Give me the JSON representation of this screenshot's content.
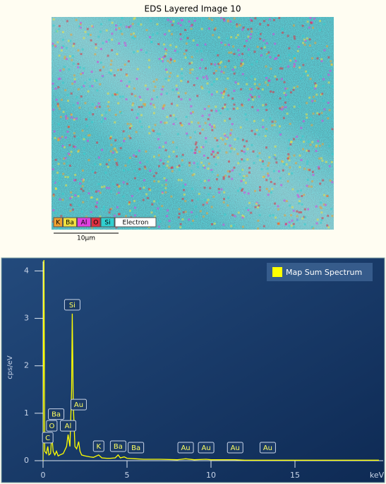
{
  "image": {
    "title": "EDS Layered Image 10",
    "legend": [
      {
        "label": "K",
        "color": "#f0a030"
      },
      {
        "label": "Ba",
        "color": "#f0e040"
      },
      {
        "label": "Al",
        "color": "#e040e0"
      },
      {
        "label": "O",
        "color": "#e03040"
      },
      {
        "label": "Si",
        "color": "#30d0d0"
      },
      {
        "label": "Electron",
        "color": "#ffffff"
      }
    ],
    "scale_bar": "10μm"
  },
  "chart_data": {
    "type": "line",
    "xlabel": "keV",
    "ylabel": "cps/eV",
    "xlim": [
      0,
      20
    ],
    "xticks": [
      0,
      5,
      10,
      15
    ],
    "ylim": [
      0,
      4.2
    ],
    "yticks": [
      0,
      1,
      2,
      3,
      4
    ],
    "x": [
      0,
      0.05,
      0.1,
      0.2,
      0.28,
      0.35,
      0.45,
      0.52,
      0.6,
      0.7,
      0.8,
      0.9,
      1.0,
      1.2,
      1.4,
      1.49,
      1.6,
      1.7,
      1.74,
      1.8,
      1.9,
      2.0,
      2.12,
      2.2,
      2.3,
      2.5,
      2.8,
      3.0,
      3.31,
      3.5,
      3.8,
      4.0,
      4.3,
      4.47,
      4.6,
      4.83,
      5.0,
      5.5,
      6,
      7,
      8,
      8.49,
      9,
      9.71,
      10,
      11,
      11.44,
      12,
      13,
      13.38,
      14,
      16,
      18,
      20
    ],
    "series": [
      {
        "name": "Map Sum Spectrum",
        "color": "#ffff00",
        "values": [
          0,
          4.5,
          0.2,
          0.15,
          0.3,
          0.12,
          0.15,
          0.55,
          0.2,
          0.12,
          0.2,
          0.1,
          0.12,
          0.15,
          0.3,
          0.55,
          0.3,
          1.5,
          3.1,
          1.2,
          0.3,
          0.25,
          0.4,
          0.2,
          0.12,
          0.1,
          0.08,
          0.07,
          0.12,
          0.06,
          0.05,
          0.05,
          0.06,
          0.12,
          0.06,
          0.08,
          0.05,
          0.04,
          0.03,
          0.03,
          0.02,
          0.04,
          0.02,
          0.03,
          0.02,
          0.02,
          0.02,
          0.01,
          0.01,
          0.01,
          0.01,
          0.01,
          0.01,
          0.01
        ]
      }
    ],
    "peak_labels": [
      {
        "label": "C",
        "x": 0.28
      },
      {
        "label": "O",
        "x": 0.52
      },
      {
        "label": "Ba",
        "x": 0.78
      },
      {
        "label": "Al",
        "x": 1.49
      },
      {
        "label": "Si",
        "x": 1.74
      },
      {
        "label": "Au",
        "x": 2.12
      },
      {
        "label": "K",
        "x": 3.31
      },
      {
        "label": "Ba",
        "x": 4.47
      },
      {
        "label": "Ba",
        "x": 5.53
      },
      {
        "label": "Au",
        "x": 8.49
      },
      {
        "label": "Au",
        "x": 9.71
      },
      {
        "label": "Au",
        "x": 11.44
      },
      {
        "label": "Au",
        "x": 13.38
      }
    ]
  }
}
